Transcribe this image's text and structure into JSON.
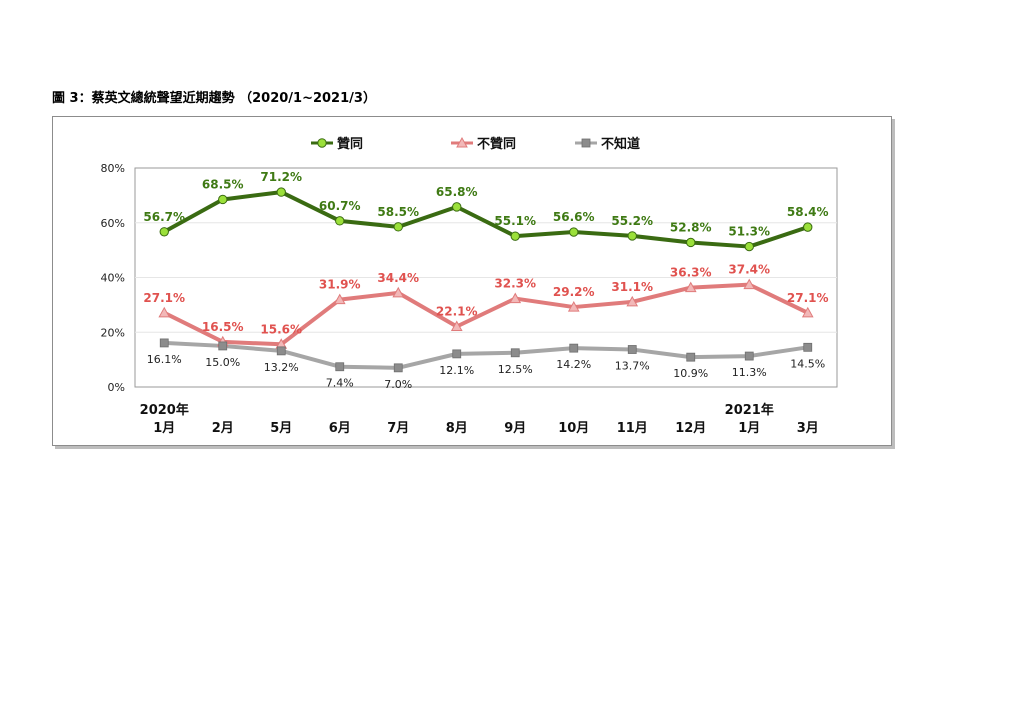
{
  "caption": "圖 3：蔡英文總統聲望近期趨勢 （2020/1~2021/3）",
  "chart_data": {
    "type": "line",
    "title": "",
    "xlabel": "",
    "ylabel": "",
    "ylim": [
      0,
      80
    ],
    "yticks": [
      "0%",
      "20%",
      "40%",
      "60%",
      "80%"
    ],
    "grid": true,
    "legend_position": "top",
    "categories": [
      [
        "2020年",
        "1月"
      ],
      [
        "",
        "2月"
      ],
      [
        "",
        "5月"
      ],
      [
        "",
        "6月"
      ],
      [
        "",
        "7月"
      ],
      [
        "",
        "8月"
      ],
      [
        "",
        "9月"
      ],
      [
        "",
        "10月"
      ],
      [
        "",
        "11月"
      ],
      [
        "",
        "12月"
      ],
      [
        "2021年",
        "1月"
      ],
      [
        "",
        "3月"
      ]
    ],
    "series": [
      {
        "name": "贊同",
        "color": "#3a6b12",
        "marker": "circle",
        "marker_color": "#9be03a",
        "label_color": "#3f7a14",
        "values": [
          56.7,
          68.5,
          71.2,
          60.7,
          58.5,
          65.8,
          55.1,
          56.6,
          55.2,
          52.8,
          51.3,
          58.4
        ],
        "labels": [
          "56.7%",
          "68.5%",
          "71.2%",
          "60.7%",
          "58.5%",
          "65.8%",
          "55.1%",
          "56.6%",
          "55.2%",
          "52.8%",
          "51.3%",
          "58.4%"
        ]
      },
      {
        "name": "不贊同",
        "color": "#e07b7b",
        "marker": "triangle",
        "marker_color": "#f2b8b8",
        "label_color": "#e0524f",
        "values": [
          27.1,
          16.5,
          15.6,
          31.9,
          34.4,
          22.1,
          32.3,
          29.2,
          31.1,
          36.3,
          37.4,
          27.1
        ],
        "labels": [
          "27.1%",
          "16.5%",
          "15.6%",
          "31.9%",
          "34.4%",
          "22.1%",
          "32.3%",
          "29.2%",
          "31.1%",
          "36.3%",
          "37.4%",
          "27.1%"
        ]
      },
      {
        "name": "不知道",
        "color": "#a6a6a6",
        "marker": "square",
        "marker_color": "#8c8c8c",
        "label_color": "#222222",
        "values": [
          16.1,
          15.0,
          13.2,
          7.4,
          7.0,
          12.1,
          12.5,
          14.2,
          13.7,
          10.9,
          11.3,
          14.5
        ],
        "labels": [
          "16.1%",
          "15.0%",
          "13.2%",
          "7.4%",
          "7.0%",
          "12.1%",
          "12.5%",
          "14.2%",
          "13.7%",
          "10.9%",
          "11.3%",
          "14.5%"
        ]
      }
    ]
  }
}
